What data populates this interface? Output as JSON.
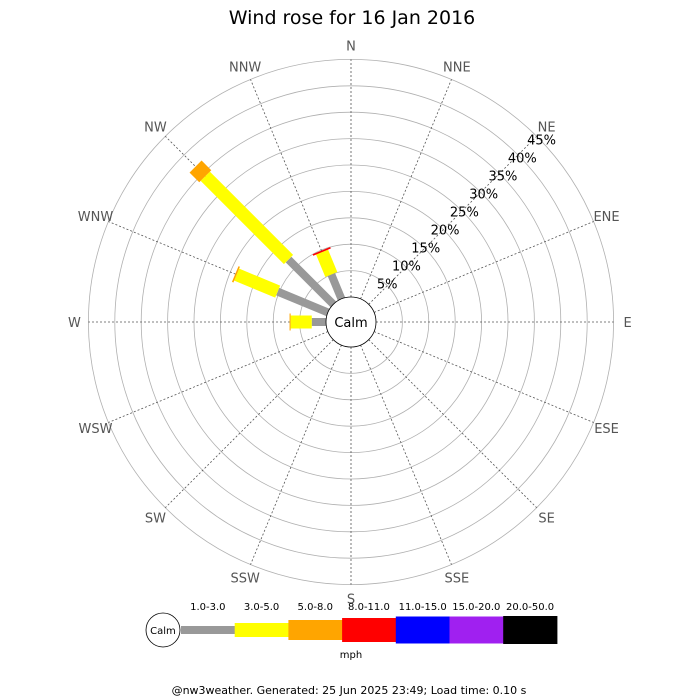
{
  "chart_data": {
    "type": "wind-rose",
    "title": "Wind rose for 16 Jan 2016",
    "directions": [
      "N",
      "NNE",
      "NE",
      "ENE",
      "E",
      "ESE",
      "SE",
      "SSE",
      "S",
      "SSW",
      "SW",
      "WSW",
      "W",
      "WNW",
      "NW",
      "NNW"
    ],
    "rings_percent": [
      5,
      10,
      15,
      20,
      25,
      30,
      35,
      40,
      45
    ],
    "ring_labels": [
      "5%",
      "10%",
      "15%",
      "20%",
      "25%",
      "30%",
      "35%",
      "40%",
      "45%"
    ],
    "calm_label": "Calm",
    "unit": "mph",
    "bins": [
      {
        "label": "1.0-3.0",
        "color": "#999999"
      },
      {
        "label": "3.0-5.0",
        "color": "#ffff00"
      },
      {
        "label": "5.0-8.0",
        "color": "#ffa500"
      },
      {
        "label": "8.0-11.0",
        "color": "#ff0000"
      },
      {
        "label": "11.0-15.0",
        "color": "#0000ff"
      },
      {
        "label": "15.0-20.0",
        "color": "#a020f0"
      },
      {
        "label": "20.0-50.0",
        "color": "#000000"
      }
    ],
    "series": [
      {
        "direction": "NNW",
        "cumulative": [
          5.0,
          9.6,
          9.6,
          9.9
        ]
      },
      {
        "direction": "NW",
        "cumulative": [
          12.0,
          34.3,
          36.9
        ]
      },
      {
        "direction": "WNW",
        "cumulative": [
          10.3,
          18.7,
          19.0
        ]
      },
      {
        "direction": "W",
        "cumulative": [
          2.7,
          6.7,
          6.9
        ]
      }
    ]
  },
  "footer": "@nw3weather. Generated: 25 Jun 2025 23:49; Load time: 0.10 s"
}
